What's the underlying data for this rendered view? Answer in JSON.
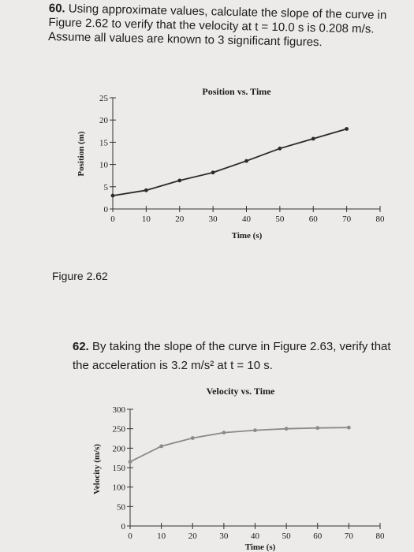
{
  "problems": {
    "p60": {
      "number": "60.",
      "text": "Using approximate values, calculate the slope of the curve in Figure 2.62 to verify that the velocity at t = 10.0 s is 0.208 m/s. Assume all values are known to 3 significant figures."
    },
    "figure_label": "Figure 2.62",
    "p62": {
      "number": "62.",
      "text_line1": "By taking the slope of the curve in Figure 2.63, verify that",
      "text_line2": "the acceleration is 3.2 m/s² at t = 10 s."
    }
  },
  "chart_data": [
    {
      "type": "line",
      "title": "Position vs. Time",
      "xlabel": "Time (s)",
      "ylabel": "Position (m)",
      "xlim": [
        0,
        80
      ],
      "ylim": [
        0,
        25
      ],
      "xticks": [
        0,
        10,
        20,
        30,
        40,
        50,
        60,
        70,
        80
      ],
      "yticks": [
        0,
        5,
        10,
        15,
        20,
        25
      ],
      "x": [
        0,
        10,
        20,
        30,
        40,
        50,
        60,
        70
      ],
      "y": [
        3,
        4.2,
        6.4,
        8.2,
        10.8,
        13.6,
        15.8,
        18.0
      ],
      "grid": false,
      "color": "#2a2a2a"
    },
    {
      "type": "line",
      "title": "Velocity vs. Time",
      "xlabel": "Time (s)",
      "ylabel": "Velocity (m/s)",
      "xlim": [
        0,
        80
      ],
      "ylim": [
        0,
        300
      ],
      "xticks": [
        0,
        10,
        20,
        30,
        40,
        50,
        60,
        70,
        80
      ],
      "yticks": [
        0,
        50,
        100,
        150,
        200,
        250,
        300
      ],
      "x": [
        0,
        10,
        20,
        30,
        40,
        50,
        60,
        70
      ],
      "y": [
        165,
        205,
        226,
        240,
        246,
        250,
        252,
        253
      ],
      "grid": false,
      "color": "#8a8a8a"
    }
  ]
}
